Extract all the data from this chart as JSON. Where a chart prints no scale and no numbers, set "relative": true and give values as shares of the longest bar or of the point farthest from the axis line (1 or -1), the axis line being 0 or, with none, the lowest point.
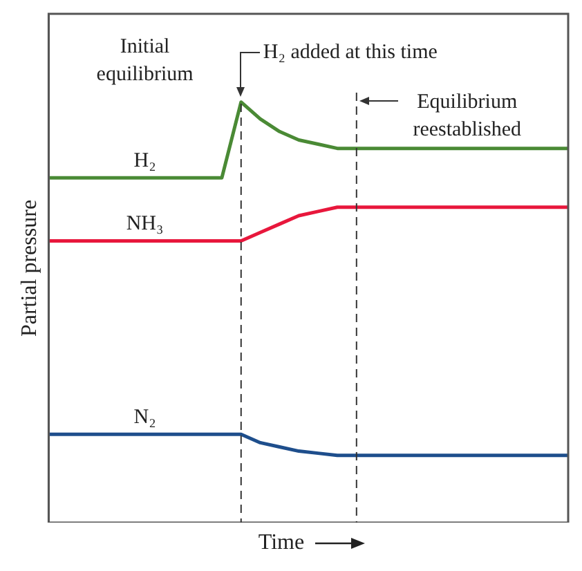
{
  "chart_data": {
    "type": "line",
    "relative": true,
    "ylabel": "Partial pressure",
    "xlabel": "Time",
    "categories": [
      null,
      null,
      null,
      null,
      null,
      null,
      null,
      null,
      null,
      null,
      null,
      null,
      null,
      null,
      null,
      null,
      null,
      null,
      null,
      null,
      null,
      null,
      null,
      null,
      null,
      null,
      null,
      null
    ],
    "series": [
      {
        "name": "H₂",
        "color": "#4a8a35",
        "values": [
          0.82,
          0.82,
          0.82,
          0.82,
          0.82,
          0.82,
          0.82,
          0.82,
          0.82,
          0.82,
          1,
          0.96,
          0.93,
          0.91,
          0.9,
          0.89,
          0.89,
          0.89,
          0.89,
          0.89,
          0.89,
          0.89,
          0.89,
          0.89,
          0.89,
          0.89,
          0.89,
          0.89
        ]
      },
      {
        "name": "NH₃",
        "color": "#e8173c",
        "values": [
          0.67,
          0.67,
          0.67,
          0.67,
          0.67,
          0.67,
          0.67,
          0.67,
          0.67,
          0.67,
          0.67,
          0.69,
          0.71,
          0.73,
          0.74,
          0.75,
          0.75,
          0.75,
          0.75,
          0.75,
          0.75,
          0.75,
          0.75,
          0.75,
          0.75,
          0.75,
          0.75,
          0.75
        ]
      },
      {
        "name": "N₂",
        "color": "#1e4e8c",
        "values": [
          0.21,
          0.21,
          0.21,
          0.21,
          0.21,
          0.21,
          0.21,
          0.21,
          0.21,
          0.21,
          0.21,
          0.19,
          0.18,
          0.17,
          0.165,
          0.16,
          0.16,
          0.16,
          0.16,
          0.16,
          0.16,
          0.16,
          0.16,
          0.16,
          0.16,
          0.16,
          0.16,
          0.16
        ]
      }
    ],
    "annotations": [
      "Initial equilibrium",
      "H₂ added at this time",
      "Equilibrium reestablished"
    ],
    "grid": false,
    "legend": false,
    "marker": "none",
    "line_style": "solid",
    "tick_labels": false
  }
}
